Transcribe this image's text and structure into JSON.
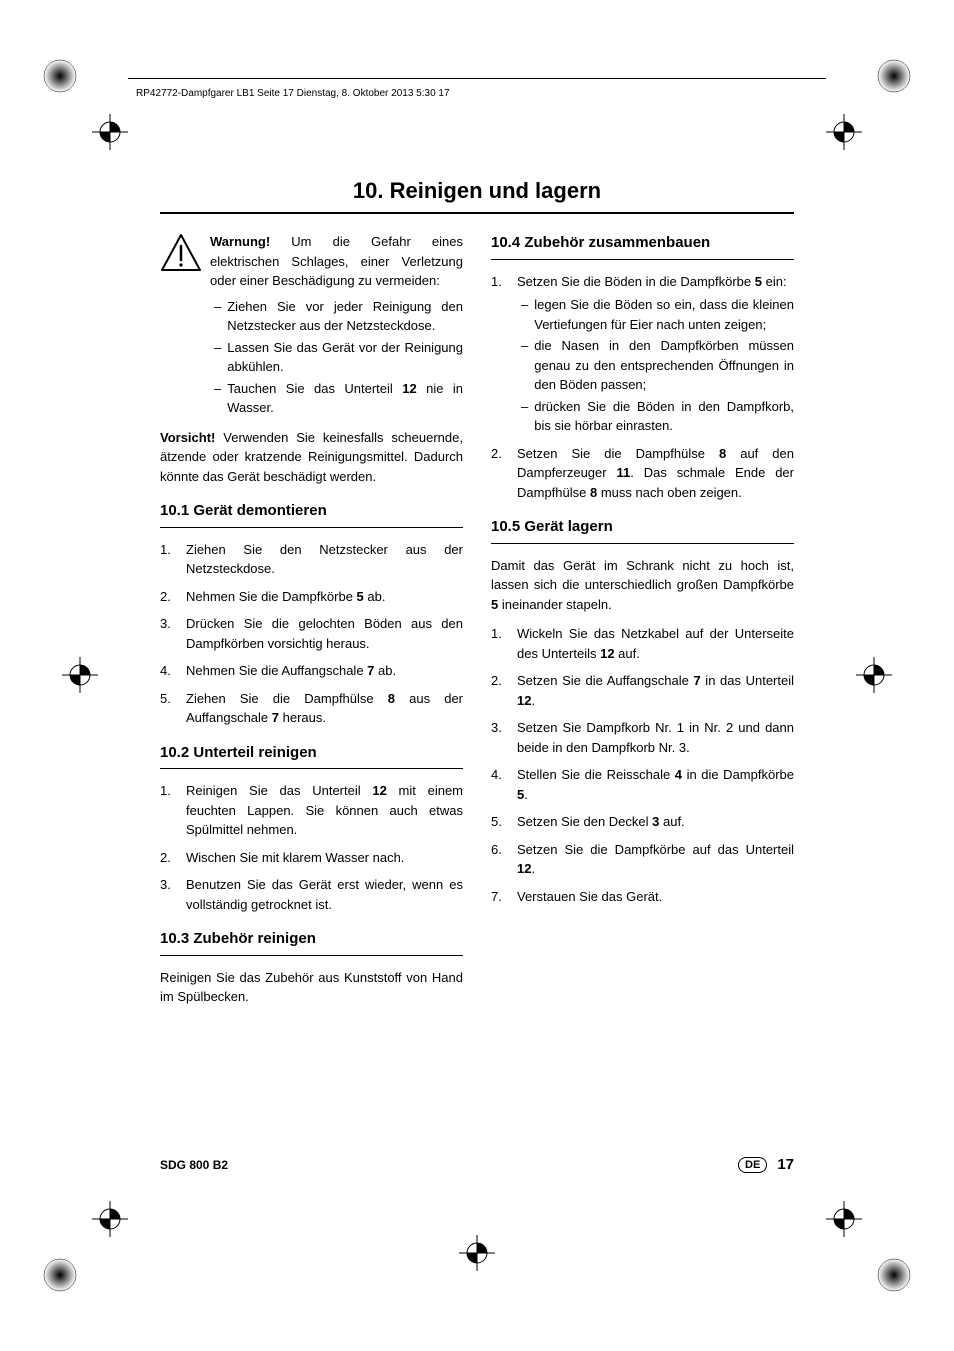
{
  "header": {
    "crop_text": "RP42772-Dampfgarer LB1  Seite 17  Dienstag, 8. Oktober 2013  5:30 17"
  },
  "title": "10. Reinigen und lagern",
  "warning": {
    "lead": "Warnung!",
    "text": " Um die Gefahr eines elektrischen Schlages, einer Verletzung oder einer Beschädigung zu vermeiden:",
    "items": [
      "Ziehen Sie vor jeder Reinigung den Netzstecker aus der Netzsteckdose.",
      "Lassen Sie das Gerät vor der Reinigung abkühlen.",
      [
        "Tauchen Sie das Unterteil ",
        "12",
        " nie in Wasser."
      ]
    ]
  },
  "caution": {
    "lead": "Vorsicht!",
    "text": " Verwenden Sie keinesfalls scheuernde, ätzende oder kratzende Reinigungsmittel. Dadurch könnte das Gerät beschädigt werden."
  },
  "sec101": {
    "title": "10.1  Gerät demontieren",
    "items": [
      [
        "Ziehen Sie den Netzstecker aus der Netzsteckdose."
      ],
      [
        "Nehmen Sie die Dampfkörbe ",
        "5",
        " ab."
      ],
      [
        "Drücken Sie die gelochten Böden aus den Dampfkörben vorsichtig heraus."
      ],
      [
        "Nehmen Sie die Auffangschale ",
        "7",
        " ab."
      ],
      [
        "Ziehen Sie die Dampfhülse ",
        "8",
        " aus der Auffangschale ",
        "7",
        " heraus."
      ]
    ]
  },
  "sec102": {
    "title": "10.2  Unterteil reinigen",
    "items": [
      [
        "Reinigen Sie das Unterteil ",
        "12",
        " mit einem feuchten Lappen. Sie können auch etwas Spülmittel nehmen."
      ],
      [
        "Wischen Sie mit klarem Wasser nach."
      ],
      [
        "Benutzen Sie das Gerät erst wieder, wenn es vollständig getrocknet ist."
      ]
    ]
  },
  "sec103": {
    "title": "10.3  Zubehör reinigen",
    "text": "Reinigen Sie das Zubehör aus Kunststoff von Hand im Spülbecken."
  },
  "sec104": {
    "title": "10.4  Zubehör zusammenbauen",
    "items": [
      [
        "Setzen Sie die Böden in die Dampfkörbe ",
        "5",
        " ein:"
      ],
      [
        "Setzen Sie die Dampfhülse ",
        "8",
        " auf den Dampferzeuger ",
        "11",
        ". Das schmale Ende der Dampfhülse ",
        "8",
        " muss nach oben zeigen."
      ]
    ],
    "nested": [
      "legen Sie die Böden so ein, dass die kleinen Vertiefungen für Eier nach unten zeigen;",
      "die Nasen in den Dampfkörben müssen genau zu den entsprechenden Öffnungen in den Böden passen;",
      "drücken Sie die Böden in den Dampfkorb, bis sie hörbar einrasten."
    ]
  },
  "sec105": {
    "title": "10.5  Gerät lagern",
    "intro": [
      "Damit das Gerät im Schrank nicht zu hoch ist, lassen sich die unterschiedlich großen Dampfkörbe ",
      "5",
      " ineinander stapeln."
    ],
    "items": [
      [
        "Wickeln Sie das Netzkabel auf der Unterseite des Unterteils ",
        "12",
        " auf."
      ],
      [
        "Setzen Sie die Auffangschale ",
        "7",
        " in das Unterteil ",
        "12",
        "."
      ],
      [
        "Setzen Sie Dampfkorb Nr. 1 in Nr. 2 und dann beide in den Dampfkorb Nr. 3."
      ],
      [
        "Stellen Sie die Reisschale ",
        "4",
        " in die Dampfkörbe ",
        "5",
        "."
      ],
      [
        "Setzen Sie den Deckel ",
        "3",
        " auf."
      ],
      [
        "Setzen Sie die Dampfkörbe auf das Unterteil ",
        "12",
        "."
      ],
      [
        "Verstauen Sie das Gerät."
      ]
    ]
  },
  "footer": {
    "model": "SDG 800 B2",
    "lang": "DE",
    "page": "17"
  },
  "colors": {
    "text": "#000000",
    "bg": "#ffffff"
  }
}
